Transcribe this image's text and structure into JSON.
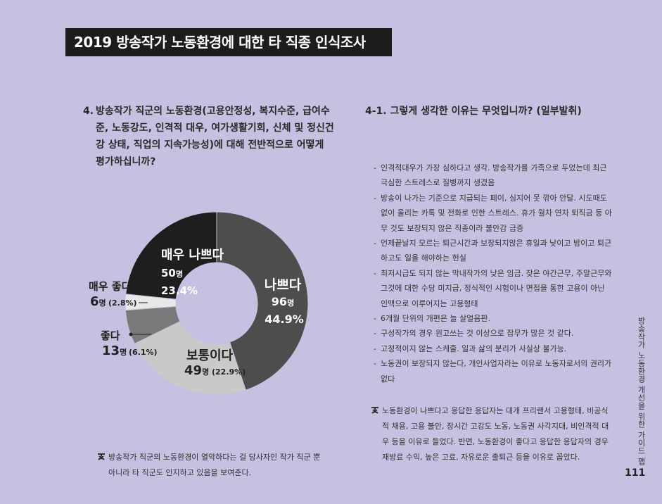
{
  "title": "2019 방송작가 노동환경에 대한 타 직종 인식조사",
  "question4": {
    "number": "4.",
    "text": "방송작가 직군의 노동환경(고용안정성, 복지수준, 급여수준, 노동강도, 인격적 대우, 여가생활기회, 신체 및 정신건강 상태, 직업의 지속가능성)에 대해 전반적으로 어떻게 평가하십니까?"
  },
  "question41": "4-1. 그렇게 생각한 이유는 무엇입니까? (일부발취)",
  "reasons": [
    "인격적대우가 가장 심하다고 생각. 방송작가를 가족으로 두었는데 최근 극심한 스트레스로 질병까지 생겼음",
    "방송이 나가는 기준으로 지급되는 페이, 심지어 못 깎아 안달. 시도때도 없이 울리는 카톡 및 전화로 인한 스트레스. 휴가 월차 연차 퇴직금 등 아무 것도 보장되지 않은 직종이라 불안감 급증",
    "언제끝날지 모르는 퇴근시간과 보장되지않은 휴일과 낮이고 밤이고 퇴근하고도 일을 해야하는 현실",
    "최저시급도 되지 않는 막내작가의 낮은 임금. 잦은 야간근무, 주말근무와 그것에 대한 수당 미지급, 정식적인 시험이나 면접을 통한 고용이 아닌 인맥으로 이루어지는 고용형태",
    "6개월 단위의 개편은 늘 살얼음판.",
    "구성작가의 경우 원고쓰는 것 이상으로 잡무가 많은 것 같다.",
    "고정적이지 않는 스케줄. 일과 삶의 분리가 사실상 불가능.",
    "노동권이 보장되지 않는다, 개인사업자라는 이유로 노동자로서의 권리가 없다"
  ],
  "left_note": "방송작가 직군의 노동환경이 열악하다는 걸 당사자인 작가 직군 뿐 아니라 타 직군도 인지하고 있음을 보여준다.",
  "right_note": "노동환경이 나쁘다고 응답한 응답자는 대개 프리랜서 고용형태, 비공식적 채용, 고용 불안, 장시간 고강도 노동, 노동권 사각지대, 비인격적 대우 등을 이유로 들었다. 반면, 노동환경이 좋다고 응답한 응답자의 경우 재방료 수익, 높은 고료, 자유로운 출퇴근 등을 이유로 꼽았다.",
  "side_text": "방송작가 노동환경 개선을 위한 가이드 맵",
  "page_number": "111",
  "unit_suffix": "명",
  "chart_data": {
    "type": "pie",
    "donut": true,
    "slices": [
      {
        "label": "나쁘다",
        "count": 96,
        "unit": "명",
        "percent_text": "44.9%",
        "value": 44.9,
        "color": "#4d4d4d"
      },
      {
        "label": "보통이다",
        "count": 49,
        "unit": "명",
        "percent_text": "(22.9%)",
        "value": 22.9,
        "color": "#c9c9c9"
      },
      {
        "label": "좋다",
        "count": 13,
        "unit": "명",
        "percent_text": "(6.1%)",
        "value": 6.1,
        "color": "#7a7a7a"
      },
      {
        "label": "매우 좋다",
        "count": 6,
        "unit": "명",
        "percent_text": "(2.8%)",
        "value": 2.8,
        "color": "#e8e8e8"
      },
      {
        "label": "매우 나쁘다",
        "count": 50,
        "unit": "명",
        "percent_text": "23.4%",
        "value": 23.4,
        "color": "#1e1e1e"
      }
    ],
    "start_angle_deg": 0,
    "legend": "labels-on-chart"
  }
}
